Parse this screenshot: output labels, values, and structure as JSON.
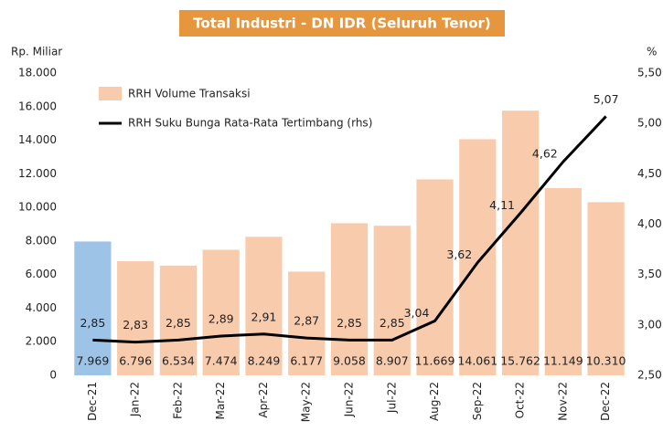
{
  "chart_data": {
    "type": "bar",
    "title": "Total Industri - DN IDR (Seluruh Tenor)",
    "ylabel": "Rp. Miliar",
    "y2label": "%",
    "categories": [
      "Dec-21",
      "Jan-22",
      "Feb-22",
      "Mar-22",
      "Apr-22",
      "May-22",
      "Jun-22",
      "Jul-22",
      "Aug-22",
      "Sep-22",
      "Oct-22",
      "Nov-22",
      "Dec-22"
    ],
    "series": [
      {
        "name": "RRH Volume Transaksi",
        "color": "#f8cbad",
        "colors": [
          "#9dc3e6",
          "#f8cbad",
          "#f8cbad",
          "#f8cbad",
          "#f8cbad",
          "#f8cbad",
          "#f8cbad",
          "#f8cbad",
          "#f8cbad",
          "#f8cbad",
          "#f8cbad",
          "#f8cbad",
          "#f8cbad"
        ],
        "values": [
          7969,
          6796,
          6534,
          7474,
          8249,
          6177,
          9058,
          8907,
          11669,
          14061,
          15762,
          11149,
          10310
        ],
        "value_labels": [
          "7.969",
          "6.796",
          "6.534",
          "7.474",
          "8.249",
          "6.177",
          "9.058",
          "8.907",
          "11.669",
          "14.061",
          "15.762",
          "11.149",
          "10.310"
        ]
      },
      {
        "name": "RRH Suku Bunga Rata-Rata Tertimbang (rhs)",
        "color": "#000000",
        "axis": "y2",
        "values": [
          2.85,
          2.83,
          2.85,
          2.89,
          2.91,
          2.87,
          2.85,
          2.85,
          3.04,
          3.62,
          4.11,
          4.62,
          5.07
        ],
        "value_labels": [
          "2,85",
          "2,83",
          "2,85",
          "2,89",
          "2,91",
          "2,87",
          "2,85",
          "2,85",
          "3,04",
          "3,62",
          "4,11",
          "4,62",
          "5,07"
        ]
      }
    ],
    "ylim": [
      0,
      18000
    ],
    "yticks": [
      0,
      {
        "value": 2000,
        "label": "2.000"
      },
      {
        "value": 4000,
        "label": "4.000"
      },
      {
        "value": 6000,
        "label": "6.000"
      },
      {
        "value": 8000,
        "label": "8.000"
      },
      {
        "value": 10000,
        "label": "10.000"
      },
      {
        "value": 12000,
        "label": "12.000"
      },
      {
        "value": 14000,
        "label": "14.000"
      },
      {
        "value": 16000,
        "label": "16.000"
      },
      {
        "value": 18000,
        "label": "18.000"
      }
    ],
    "y2lim": [
      2.5,
      5.5
    ],
    "y2ticks": [
      {
        "value": 2.5,
        "label": "2,50"
      },
      {
        "value": 3,
        "label": "3,00"
      },
      {
        "value": 3.5,
        "label": "3,50"
      },
      {
        "value": 4,
        "label": "4,00"
      },
      {
        "value": 4.5,
        "label": "4,50"
      },
      {
        "value": 5,
        "label": "5,00"
      },
      {
        "value": 5.5,
        "label": "5,50"
      }
    ],
    "legend": "upper left"
  }
}
